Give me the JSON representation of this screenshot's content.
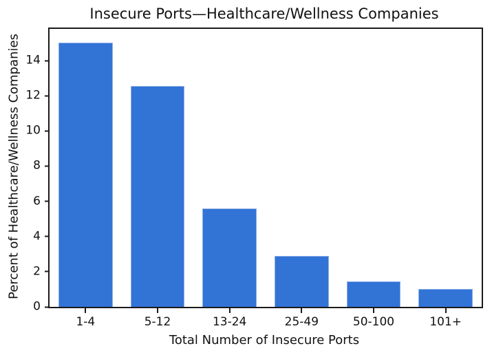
{
  "chart_data": {
    "type": "bar",
    "title": "Insecure Ports—Healthcare/Wellness Companies",
    "xlabel": "Total Number of Insecure Ports",
    "ylabel": "Percent of Healthcare/Wellness Companies",
    "categories": [
      "1-4",
      "5-12",
      "13-24",
      "25-49",
      "50-100",
      "101+"
    ],
    "values": [
      15.0,
      12.55,
      5.6,
      2.9,
      1.45,
      1.0
    ],
    "yticks": [
      0,
      2,
      4,
      6,
      8,
      10,
      12,
      14
    ],
    "ylim": [
      0,
      15.8
    ],
    "grid": false,
    "legend": "none",
    "bar_color": "#3273d6",
    "bar_edge_color": "#8fb0e8",
    "axis_color": "#1a1a1a",
    "background_color": "#ffffff"
  }
}
